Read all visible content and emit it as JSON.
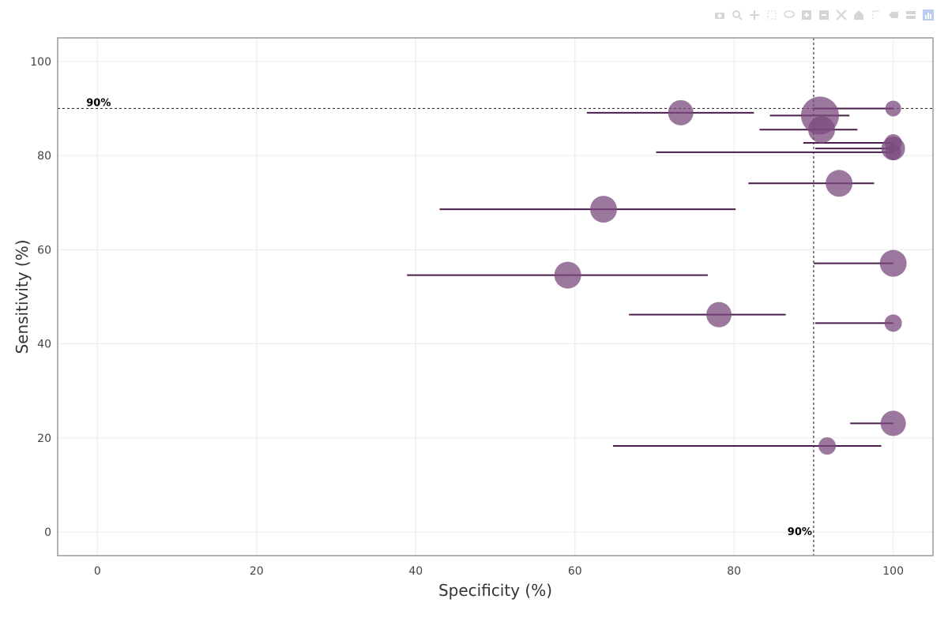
{
  "modebar": {
    "icons": [
      "camera-icon",
      "zoom-icon",
      "pan-icon",
      "box-select-icon",
      "lasso-icon",
      "zoom-in-icon",
      "zoom-out-icon",
      "autoscale-icon",
      "home-icon",
      "spike-lines-icon",
      "hover-closest-icon",
      "hover-compare-icon",
      "plotly-logo-icon"
    ]
  },
  "colors": {
    "marker": "#7b4a7e",
    "ci_line": "#4a1d4d",
    "grid": "#ebebeb",
    "axis": "#999999",
    "ref_line": "#333333"
  },
  "chart_data": {
    "type": "scatter",
    "title": "",
    "xlabel": "Specificity (%)",
    "ylabel": "Sensitivity (%)",
    "xlim": [
      -5,
      105
    ],
    "ylim": [
      -5,
      105
    ],
    "xticks": [
      0,
      20,
      40,
      60,
      80,
      100
    ],
    "yticks": [
      0,
      20,
      40,
      60,
      80,
      100
    ],
    "grid": true,
    "reference_lines": [
      {
        "axis": "y",
        "value": 90,
        "label": "90%"
      },
      {
        "axis": "x",
        "value": 90,
        "label": "90%"
      }
    ],
    "points": [
      {
        "x": 100,
        "y": 90,
        "x_lo": 90,
        "x_hi": 100,
        "size": 10
      },
      {
        "x": 73.3,
        "y": 89.1,
        "x_lo": 61.5,
        "x_hi": 82.5,
        "size": 16
      },
      {
        "x": 90.8,
        "y": 88.5,
        "x_lo": 84.5,
        "x_hi": 94.5,
        "size": 24
      },
      {
        "x": 91,
        "y": 85.5,
        "x_lo": 83.2,
        "x_hi": 95.5,
        "size": 17
      },
      {
        "x": 100,
        "y": 82.7,
        "x_lo": 88.7,
        "x_hi": 100,
        "size": 11
      },
      {
        "x": 100,
        "y": 81.5,
        "x_lo": 90.2,
        "x_hi": 100,
        "size": 15
      },
      {
        "x": 100,
        "y": 80.7,
        "x_lo": 70.2,
        "x_hi": 100,
        "size": 10
      },
      {
        "x": 93.2,
        "y": 74.1,
        "x_lo": 81.8,
        "x_hi": 97.6,
        "size": 17
      },
      {
        "x": 63.6,
        "y": 68.6,
        "x_lo": 43,
        "x_hi": 80.2,
        "size": 17
      },
      {
        "x": 100,
        "y": 57.1,
        "x_lo": 90,
        "x_hi": 100,
        "size": 17
      },
      {
        "x": 59.1,
        "y": 54.6,
        "x_lo": 38.9,
        "x_hi": 76.7,
        "size": 17
      },
      {
        "x": 78.1,
        "y": 46.2,
        "x_lo": 66.8,
        "x_hi": 86.5,
        "size": 16
      },
      {
        "x": 100,
        "y": 44.4,
        "x_lo": 90.2,
        "x_hi": 100,
        "size": 11
      },
      {
        "x": 100,
        "y": 23.1,
        "x_lo": 94.6,
        "x_hi": 100,
        "size": 16
      },
      {
        "x": 91.7,
        "y": 18.3,
        "x_lo": 64.8,
        "x_hi": 98.5,
        "size": 11
      }
    ]
  }
}
